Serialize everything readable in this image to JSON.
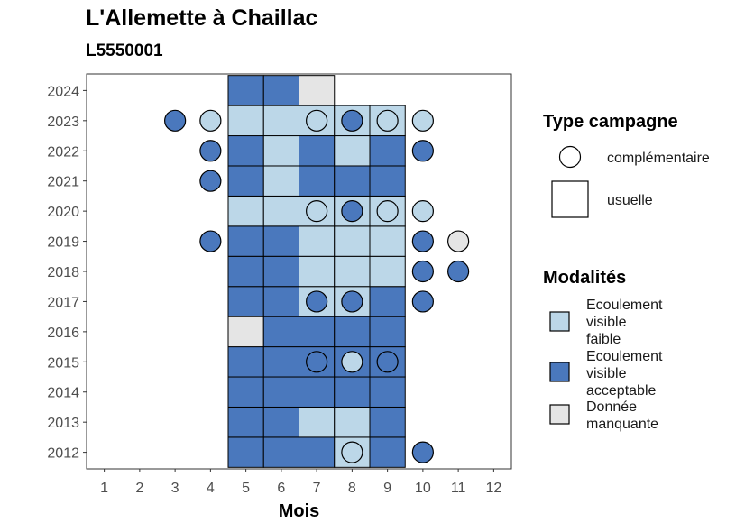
{
  "chart_data": {
    "type": "heatmap",
    "title": "L'Allemette à Chaillac",
    "subtitle": "L5550001",
    "xlabel": "Mois",
    "ylabel": "",
    "x_ticks": [
      "1",
      "2",
      "3",
      "4",
      "5",
      "6",
      "7",
      "8",
      "9",
      "10",
      "11",
      "12"
    ],
    "y_ticks": [
      "2012",
      "2013",
      "2014",
      "2015",
      "2016",
      "2017",
      "2018",
      "2019",
      "2020",
      "2021",
      "2022",
      "2023",
      "2024"
    ],
    "xlim": [
      0.5,
      12.5
    ],
    "ylim": [
      2011.45,
      2024.55
    ],
    "grid": false,
    "legends": {
      "type_campagne": {
        "title": "Type campagne",
        "items": [
          {
            "label": "complémentaire",
            "shape": "circle"
          },
          {
            "label": "usuelle",
            "shape": "square"
          }
        ]
      },
      "modalites": {
        "title": "Modalités",
        "items": [
          {
            "key": "faible",
            "lines": [
              "Ecoulement",
              "visible",
              "faible"
            ],
            "color": "#bcd7e8"
          },
          {
            "key": "acceptable",
            "lines": [
              "Ecoulement",
              "visible",
              "acceptable"
            ],
            "color": "#4a78bd"
          },
          {
            "key": "manquante",
            "lines": [
              "Donnée",
              "manquante"
            ],
            "color": "#e5e5e5"
          }
        ]
      }
    },
    "usuelle": [
      {
        "year": 2012,
        "cells": {
          "5": "A",
          "6": "A",
          "7": "A",
          "8": "F",
          "9": "A"
        }
      },
      {
        "year": 2013,
        "cells": {
          "5": "A",
          "6": "A",
          "7": "F",
          "8": "F",
          "9": "A"
        }
      },
      {
        "year": 2014,
        "cells": {
          "5": "A",
          "6": "A",
          "7": "A",
          "8": "A",
          "9": "A"
        }
      },
      {
        "year": 2015,
        "cells": {
          "5": "A",
          "6": "A",
          "7": "A",
          "8": "A",
          "9": "A"
        }
      },
      {
        "year": 2016,
        "cells": {
          "5": "M",
          "6": "A",
          "7": "A",
          "8": "A",
          "9": "A"
        }
      },
      {
        "year": 2017,
        "cells": {
          "5": "A",
          "6": "A",
          "7": "F",
          "8": "F",
          "9": "A"
        }
      },
      {
        "year": 2018,
        "cells": {
          "5": "A",
          "6": "A",
          "7": "F",
          "8": "F",
          "9": "F"
        }
      },
      {
        "year": 2019,
        "cells": {
          "5": "A",
          "6": "A",
          "7": "F",
          "8": "F",
          "9": "F"
        }
      },
      {
        "year": 2020,
        "cells": {
          "5": "F",
          "6": "F",
          "7": "F",
          "8": "F",
          "9": "F"
        }
      },
      {
        "year": 2021,
        "cells": {
          "5": "A",
          "6": "F",
          "7": "A",
          "8": "A",
          "9": "A"
        }
      },
      {
        "year": 2022,
        "cells": {
          "5": "A",
          "6": "F",
          "7": "A",
          "8": "F",
          "9": "A"
        }
      },
      {
        "year": 2023,
        "cells": {
          "5": "F",
          "6": "F",
          "7": "F",
          "8": "F",
          "9": "F"
        }
      },
      {
        "year": 2024,
        "cells": {
          "5": "A",
          "6": "A",
          "7": "M"
        }
      }
    ],
    "complementaire": [
      {
        "year": 2012,
        "month": 8,
        "v": "F"
      },
      {
        "year": 2012,
        "month": 10,
        "v": "A"
      },
      {
        "year": 2015,
        "month": 7,
        "v": "A"
      },
      {
        "year": 2015,
        "month": 8,
        "v": "F"
      },
      {
        "year": 2015,
        "month": 9,
        "v": "A"
      },
      {
        "year": 2017,
        "month": 7,
        "v": "A"
      },
      {
        "year": 2017,
        "month": 8,
        "v": "A"
      },
      {
        "year": 2017,
        "month": 10,
        "v": "A"
      },
      {
        "year": 2018,
        "month": 10,
        "v": "A"
      },
      {
        "year": 2018,
        "month": 11,
        "v": "A"
      },
      {
        "year": 2019,
        "month": 4,
        "v": "A"
      },
      {
        "year": 2019,
        "month": 10,
        "v": "A"
      },
      {
        "year": 2019,
        "month": 11,
        "v": "M"
      },
      {
        "year": 2020,
        "month": 7,
        "v": "F"
      },
      {
        "year": 2020,
        "month": 8,
        "v": "A"
      },
      {
        "year": 2020,
        "month": 9,
        "v": "F"
      },
      {
        "year": 2020,
        "month": 10,
        "v": "F"
      },
      {
        "year": 2021,
        "month": 4,
        "v": "A"
      },
      {
        "year": 2022,
        "month": 4,
        "v": "A"
      },
      {
        "year": 2022,
        "month": 10,
        "v": "A"
      },
      {
        "year": 2023,
        "month": 3,
        "v": "A"
      },
      {
        "year": 2023,
        "month": 4,
        "v": "F"
      },
      {
        "year": 2023,
        "month": 7,
        "v": "F"
      },
      {
        "year": 2023,
        "month": 8,
        "v": "A"
      },
      {
        "year": 2023,
        "month": 9,
        "v": "F"
      },
      {
        "year": 2023,
        "month": 10,
        "v": "F"
      }
    ],
    "colors": {
      "F": "#bcd7e8",
      "A": "#4a78bd",
      "M": "#e5e5e5",
      "stroke": "#000000",
      "panel_border": "#333333"
    }
  }
}
